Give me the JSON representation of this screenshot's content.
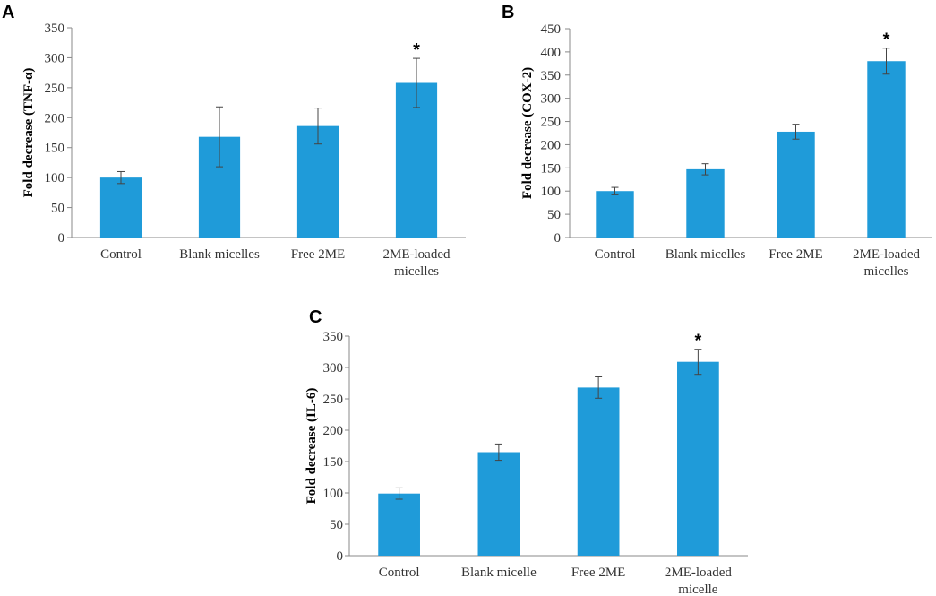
{
  "chart_data": [
    {
      "panel": "A",
      "type": "bar",
      "title": "",
      "xlabel": "",
      "ylabel": "Fold decrease (TNF-α)",
      "ylim": [
        0,
        350
      ],
      "yticks": [
        0,
        50,
        100,
        150,
        200,
        250,
        300,
        350
      ],
      "categories": [
        [
          "Control"
        ],
        [
          "Blank micelles"
        ],
        [
          "Free 2ME"
        ],
        [
          "2ME-loaded",
          "micelles"
        ]
      ],
      "values": [
        100,
        168,
        186,
        258
      ],
      "errors": [
        10,
        50,
        30,
        41
      ],
      "significance": [
        "",
        "",
        "",
        "*"
      ],
      "color": "#1f9bd9"
    },
    {
      "panel": "B",
      "type": "bar",
      "title": "",
      "xlabel": "",
      "ylabel": "Fold decrease (COX-2)",
      "ylim": [
        0,
        450
      ],
      "yticks": [
        0,
        50,
        100,
        150,
        200,
        250,
        300,
        350,
        400,
        450
      ],
      "categories": [
        [
          "Control"
        ],
        [
          "Blank micelles"
        ],
        [
          "Free 2ME"
        ],
        [
          "2ME-loaded",
          "micelles"
        ]
      ],
      "values": [
        100,
        147,
        228,
        380
      ],
      "errors": [
        8,
        12,
        16,
        28
      ],
      "significance": [
        "",
        "",
        "",
        "*"
      ],
      "color": "#1f9bd9"
    },
    {
      "panel": "C",
      "type": "bar",
      "title": "",
      "xlabel": "",
      "ylabel": "Fold decrease (IL-6)",
      "ylim": [
        0,
        350
      ],
      "yticks": [
        0,
        50,
        100,
        150,
        200,
        250,
        300,
        350
      ],
      "categories": [
        [
          "Control"
        ],
        [
          "Blank micelle"
        ],
        [
          "Free 2ME"
        ],
        [
          "2ME-loaded",
          "micelle"
        ]
      ],
      "values": [
        99,
        165,
        268,
        309
      ],
      "errors": [
        9,
        13,
        17,
        20
      ],
      "significance": [
        "",
        "",
        "",
        "*"
      ],
      "color": "#1f9bd9"
    }
  ]
}
